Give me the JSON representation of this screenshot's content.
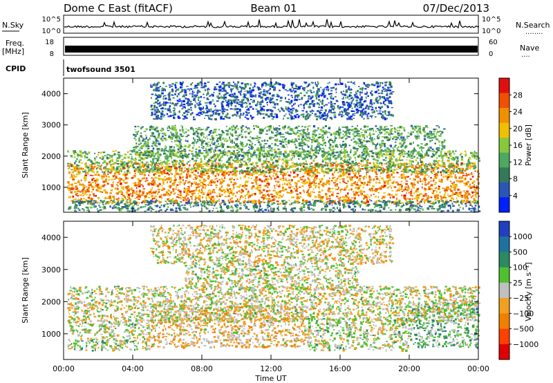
{
  "header": {
    "station": "Dome C East (fitACF)",
    "beam": "Beam 01",
    "date": "07/Dec/2013"
  },
  "status_panels": {
    "nsky_label": "N.Sky",
    "nsearch_label": "N.Search",
    "nsearch_dots": "........",
    "noise_ticks": [
      "10^5",
      "10^0"
    ],
    "freq_label": "Freq.",
    "freq_unit": "[MHz]",
    "freq_ticks": [
      "18",
      "8"
    ],
    "nave_label": "Nave",
    "nave_dots": "....",
    "nave_ticks": [
      "60",
      "0"
    ],
    "cpid_label": "CPID",
    "cpid_value": "twofsound 3501"
  },
  "time_axis": {
    "xlabel": "Time UT",
    "ticks": [
      "00:00",
      "04:00",
      "08:00",
      "12:00",
      "16:00",
      "20:00",
      "00:00"
    ]
  },
  "chart_data": [
    {
      "type": "heatmap",
      "name": "power",
      "x_range_hours": [
        0,
        24
      ],
      "ylabel": "Slant Range [km]",
      "ylim": [
        200,
        4500
      ],
      "yticks": [
        1000,
        2000,
        3000,
        4000
      ],
      "colorbar": {
        "label": "Power [dB]",
        "ticks": [
          "28",
          "24",
          "20",
          "16",
          "12",
          "8",
          "4"
        ],
        "range": [
          0,
          30
        ],
        "colors": [
          "#0020ff",
          "#2a56b8",
          "#337a5a",
          "#4ea860",
          "#88c83c",
          "#f0c000",
          "#f09000",
          "#f05000",
          "#e01010"
        ]
      },
      "regions": [
        {
          "t0": 0.2,
          "t1": 24,
          "r0": 500,
          "r1": 1800,
          "level": 22
        },
        {
          "t0": 0.2,
          "t1": 24,
          "r0": 1500,
          "r1": 2200,
          "level": 13
        },
        {
          "t0": 4,
          "t1": 22,
          "r0": 2000,
          "r1": 3000,
          "level": 11
        },
        {
          "t0": 5,
          "t1": 19,
          "r0": 3200,
          "r1": 4400,
          "level": 6
        },
        {
          "t0": 0.2,
          "t1": 24,
          "r0": 250,
          "r1": 600,
          "level": 9
        }
      ]
    },
    {
      "type": "heatmap",
      "name": "velocity",
      "x_range_hours": [
        0,
        24
      ],
      "ylabel": "Slant Range [km]",
      "ylim": [
        200,
        4500
      ],
      "yticks": [
        1000,
        2000,
        3000,
        4000
      ],
      "colorbar": {
        "label": "Velocity [m s⁻¹]",
        "ticks": [
          "1000",
          "500",
          "100",
          "25",
          "−25",
          "−100",
          "−500",
          "−1000"
        ],
        "range": [
          -1200,
          1200
        ],
        "colors": [
          "#e00000",
          "#ff4000",
          "#f08000",
          "#f0a020",
          "#c0c0c0",
          "#50c030",
          "#2a8a60",
          "#2070a0",
          "#2040c0"
        ]
      },
      "regions": [
        {
          "t0": 0.2,
          "t1": 5,
          "r0": 500,
          "r1": 1400,
          "level": 110
        },
        {
          "t0": 5,
          "t1": 14,
          "r0": 600,
          "r1": 1900,
          "level": -220
        },
        {
          "t0": 14,
          "t1": 20,
          "r0": 500,
          "r1": 1500,
          "level": 80
        },
        {
          "t0": 20,
          "t1": 24,
          "r0": 600,
          "r1": 2000,
          "level": 300
        },
        {
          "t0": 0.2,
          "t1": 24,
          "r0": 1400,
          "r1": 2500,
          "level": 0
        },
        {
          "t0": 7,
          "t1": 17,
          "r0": 2400,
          "r1": 3200,
          "level": 5
        },
        {
          "t0": 5,
          "t1": 19,
          "r0": 3200,
          "r1": 4400,
          "level": -60
        }
      ]
    }
  ]
}
